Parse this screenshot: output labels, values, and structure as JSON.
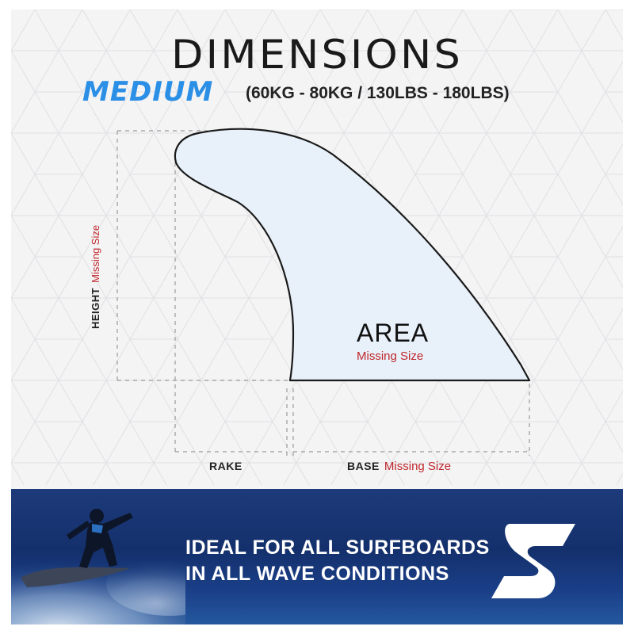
{
  "header": {
    "title": "DIMENSIONS",
    "size_label": "MEDIUM",
    "weight_range": "(60KG - 80KG / 130LBS - 180LBS)"
  },
  "diagram": {
    "area_label": "AREA",
    "area_value": "Missing Size",
    "height_label": "HEIGHT",
    "height_value": "Missing Size",
    "rake_label": "RAKE",
    "base_label": "BASE",
    "base_value": "Missing Size"
  },
  "banner": {
    "line1": "IDEAL FOR ALL SURFBOARDS",
    "line2": "IN ALL WAVE CONDITIONS"
  },
  "colors": {
    "accent_blue": "#2b8fe6",
    "missing_red": "#c0262b",
    "fin_fill": "#e8f1fa",
    "banner_blue": "#14306c"
  }
}
